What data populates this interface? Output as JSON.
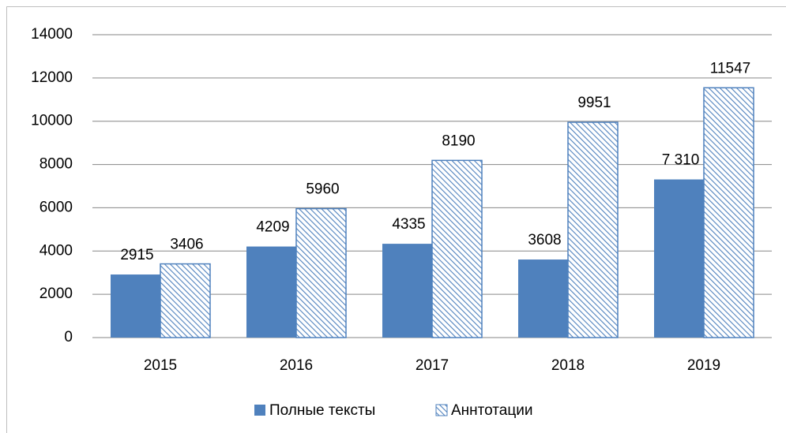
{
  "chart_data": {
    "type": "bar",
    "categories": [
      "2015",
      "2016",
      "2017",
      "2018",
      "2019"
    ],
    "series": [
      {
        "name": "Полные тексты",
        "color": "#4f81bd",
        "fill": "solid",
        "values": [
          2915,
          4209,
          4335,
          3608,
          7310
        ],
        "value_labels": [
          "2915",
          "4209",
          "4335",
          "3608",
          "7 310"
        ]
      },
      {
        "name": "Аннтотации",
        "color": "#4f81bd",
        "fill": "hatch",
        "values": [
          3406,
          5960,
          8190,
          9951,
          11547
        ]
      }
    ],
    "ylim": [
      0,
      14000
    ],
    "yticks": [
      0,
      2000,
      4000,
      6000,
      8000,
      10000,
      12000,
      14000
    ],
    "grid": true,
    "legend": "bottom"
  }
}
